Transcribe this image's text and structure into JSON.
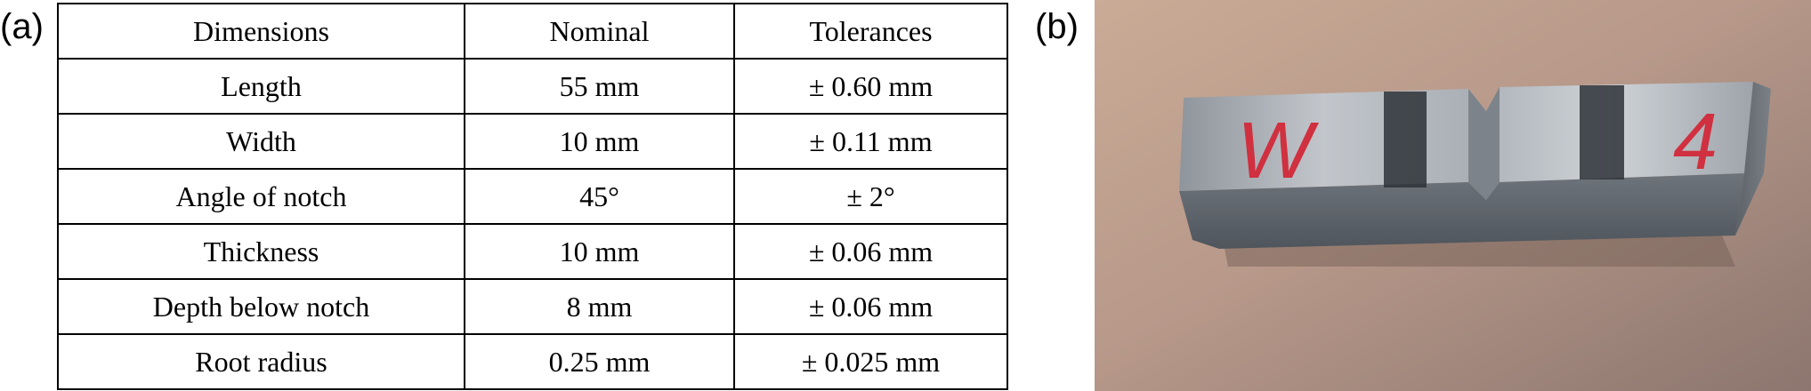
{
  "panels": {
    "a_label": "(a)",
    "b_label": "(b)"
  },
  "table": {
    "headers": [
      "Dimensions",
      "Nominal",
      "Tolerances"
    ],
    "rows": [
      [
        "Length",
        "55 mm",
        "± 0.60 mm"
      ],
      [
        "Width",
        "10 mm",
        "± 0.11 mm"
      ],
      [
        "Angle of notch",
        "45°",
        "± 2°"
      ],
      [
        "Thickness",
        "10 mm",
        "± 0.06 mm"
      ],
      [
        "Depth below notch",
        "8 mm",
        "± 0.06 mm"
      ],
      [
        "Root radius",
        "0.25 mm",
        "± 0.025 mm"
      ]
    ]
  },
  "photo": {
    "marking_left": "W",
    "marking_right": "4",
    "marking_color": "#d0303f",
    "surface_color": "#b89a86",
    "specimen_color": "#9aa0a6"
  }
}
